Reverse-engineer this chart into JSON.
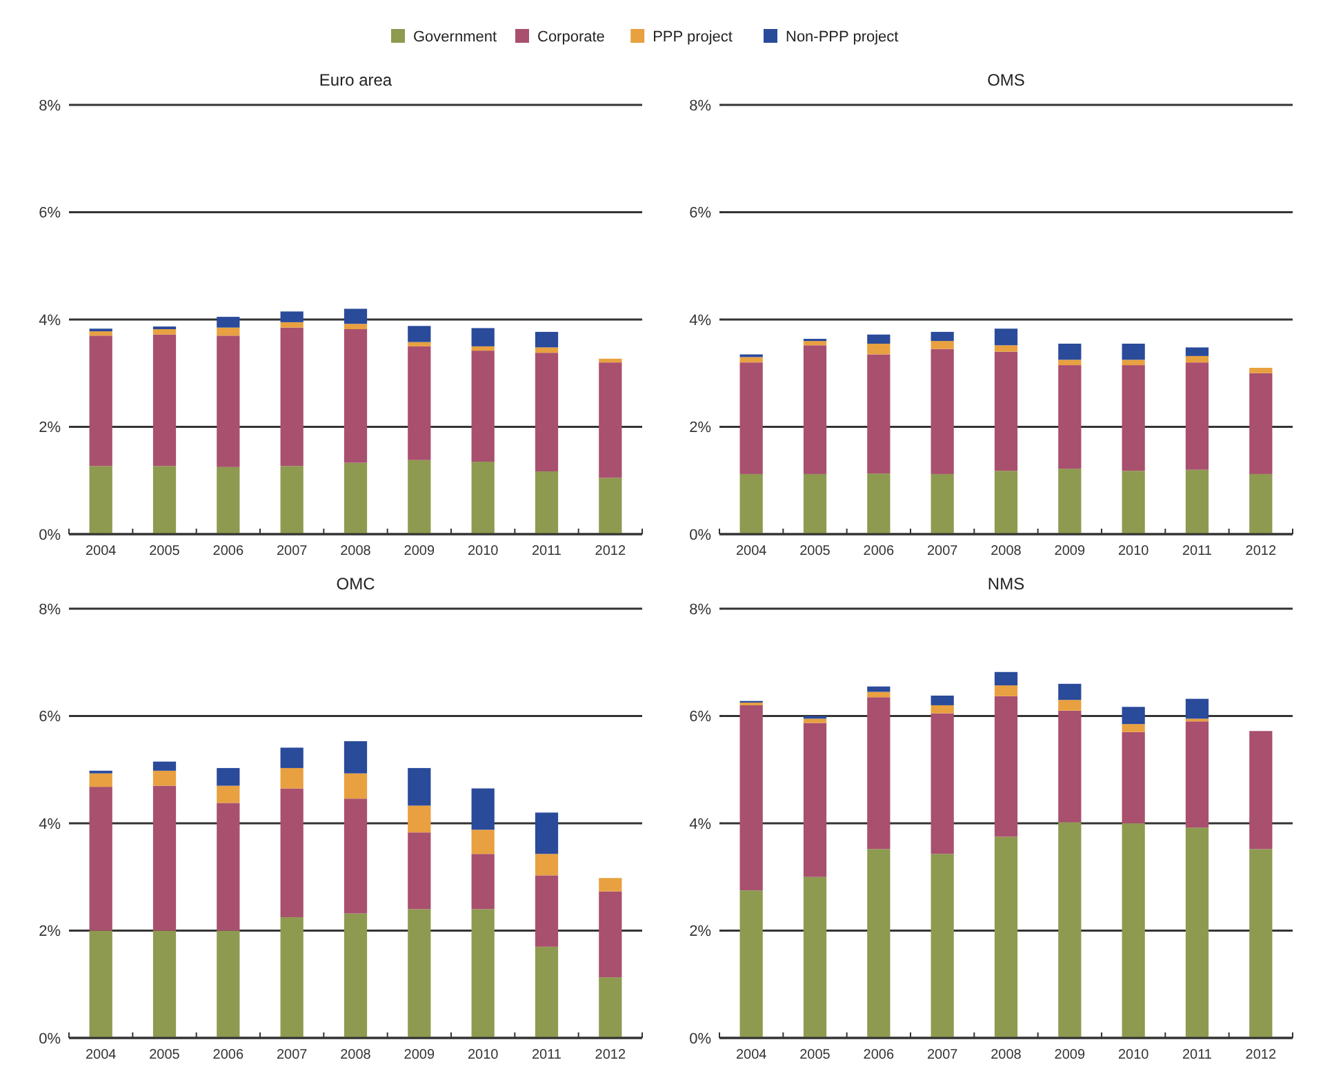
{
  "chart_data": [
    {
      "type": "bar",
      "title": "Euro area",
      "stacked": true,
      "grid": "y",
      "legend": "top",
      "categories": [
        "2004",
        "2005",
        "2006",
        "2007",
        "2008",
        "2009",
        "2010",
        "2011",
        "2012"
      ],
      "ylim": [
        0,
        8
      ],
      "yticks": [
        {
          "value": 0,
          "label": "0%"
        },
        {
          "value": 2,
          "label": "2%"
        },
        {
          "value": 4,
          "label": "4%"
        },
        {
          "value": 6,
          "label": "6%"
        },
        {
          "value": 8,
          "label": "8%"
        }
      ],
      "series": [
        {
          "name": "Government",
          "color": "#8e9a4f",
          "values": [
            1.27,
            1.27,
            1.25,
            1.27,
            1.33,
            1.38,
            1.35,
            1.17,
            1.05
          ]
        },
        {
          "name": "Corporate",
          "color": "#a8506e",
          "values": [
            2.43,
            2.45,
            2.45,
            2.58,
            2.49,
            2.12,
            2.07,
            2.21,
            2.15
          ]
        },
        {
          "name": "PPP project",
          "color": "#e8a040",
          "values": [
            0.08,
            0.1,
            0.15,
            0.1,
            0.1,
            0.08,
            0.08,
            0.1,
            0.07
          ]
        },
        {
          "name": "Non-PPP project",
          "color": "#2a4a9a",
          "values": [
            0.05,
            0.05,
            0.2,
            0.2,
            0.28,
            0.3,
            0.34,
            0.29,
            0
          ]
        }
      ]
    },
    {
      "type": "bar",
      "title": "OMS",
      "stacked": true,
      "grid": "y",
      "categories": [
        "2004",
        "2005",
        "2006",
        "2007",
        "2008",
        "2009",
        "2010",
        "2011",
        "2012"
      ],
      "ylim": [
        0,
        8
      ],
      "yticks": [
        {
          "value": 0,
          "label": "0%"
        },
        {
          "value": 2,
          "label": "2%"
        },
        {
          "value": 4,
          "label": "4%"
        },
        {
          "value": 6,
          "label": "6%"
        },
        {
          "value": 8,
          "label": "8%"
        }
      ],
      "series": [
        {
          "color": "#8e9a4f",
          "values": [
            1.12,
            1.12,
            1.13,
            1.12,
            1.18,
            1.22,
            1.18,
            1.2,
            1.12
          ]
        },
        {
          "color": "#a8506e",
          "values": [
            2.08,
            2.4,
            2.22,
            2.33,
            2.22,
            1.93,
            1.97,
            2.0,
            1.88
          ]
        },
        {
          "color": "#e8a040",
          "values": [
            0.1,
            0.08,
            0.2,
            0.15,
            0.12,
            0.1,
            0.1,
            0.12,
            0.1
          ]
        },
        {
          "color": "#2a4a9a",
          "values": [
            0.05,
            0.04,
            0.17,
            0.17,
            0.31,
            0.3,
            0.3,
            0.16,
            0
          ]
        }
      ]
    },
    {
      "type": "bar",
      "title": "OMC",
      "stacked": true,
      "grid": "y",
      "categories": [
        "2004",
        "2005",
        "2006",
        "2007",
        "2008",
        "2009",
        "2010",
        "2011",
        "2012"
      ],
      "ylim": [
        0,
        8
      ],
      "yticks": [
        {
          "value": 0,
          "label": "0%"
        },
        {
          "value": 2,
          "label": "2%"
        },
        {
          "value": 4,
          "label": "4%"
        },
        {
          "value": 6,
          "label": "6%"
        },
        {
          "value": 8,
          "label": "8%"
        }
      ],
      "series": [
        {
          "color": "#8e9a4f",
          "values": [
            2.0,
            2.0,
            2.0,
            2.25,
            2.32,
            2.4,
            2.4,
            1.7,
            1.13
          ]
        },
        {
          "color": "#a8506e",
          "values": [
            2.68,
            2.7,
            2.38,
            2.4,
            2.14,
            1.43,
            1.03,
            1.33,
            1.6
          ]
        },
        {
          "color": "#e8a040",
          "values": [
            0.25,
            0.28,
            0.32,
            0.38,
            0.47,
            0.5,
            0.45,
            0.4,
            0.25
          ]
        },
        {
          "color": "#2a4a9a",
          "values": [
            0.05,
            0.17,
            0.33,
            0.38,
            0.6,
            0.7,
            0.77,
            0.77,
            0
          ]
        }
      ]
    },
    {
      "type": "bar",
      "title": "NMS",
      "stacked": true,
      "grid": "y",
      "categories": [
        "2004",
        "2005",
        "2006",
        "2007",
        "2008",
        "2009",
        "2010",
        "2011",
        "2012"
      ],
      "ylim": [
        0,
        8
      ],
      "yticks": [
        {
          "value": 0,
          "label": "0%"
        },
        {
          "value": 2,
          "label": "2%"
        },
        {
          "value": 4,
          "label": "4%"
        },
        {
          "value": 6,
          "label": "6%"
        },
        {
          "value": 8,
          "label": "8%"
        }
      ],
      "series": [
        {
          "color": "#8e9a4f",
          "values": [
            2.75,
            3.0,
            3.52,
            3.43,
            3.75,
            4.02,
            4.0,
            3.92,
            3.52
          ]
        },
        {
          "color": "#a8506e",
          "values": [
            3.45,
            2.87,
            2.83,
            2.62,
            2.62,
            2.08,
            1.7,
            1.98,
            2.2
          ]
        },
        {
          "color": "#e8a040",
          "values": [
            0.05,
            0.08,
            0.1,
            0.15,
            0.2,
            0.2,
            0.15,
            0.05,
            0
          ]
        },
        {
          "color": "#2a4a9a",
          "values": [
            0.03,
            0.05,
            0.1,
            0.18,
            0.25,
            0.3,
            0.32,
            0.37,
            0
          ]
        }
      ]
    }
  ]
}
